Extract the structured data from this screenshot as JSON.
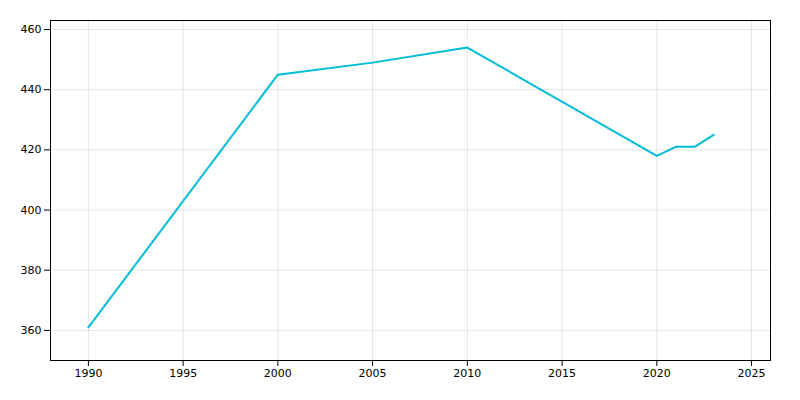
{
  "chart_data": {
    "type": "line",
    "x": [
      1990,
      2000,
      2005,
      2010,
      2020,
      2021,
      2022,
      2023
    ],
    "values": [
      361,
      445,
      449,
      454,
      418,
      421,
      421,
      425
    ],
    "color": "#00BCD4",
    "xlim": [
      1988,
      2026
    ],
    "ylim": [
      350,
      463
    ],
    "xticks": [
      1990,
      1995,
      2000,
      2005,
      2010,
      2015,
      2020,
      2025
    ],
    "yticks": [
      360,
      380,
      400,
      420,
      440,
      460
    ],
    "grid": true
  }
}
